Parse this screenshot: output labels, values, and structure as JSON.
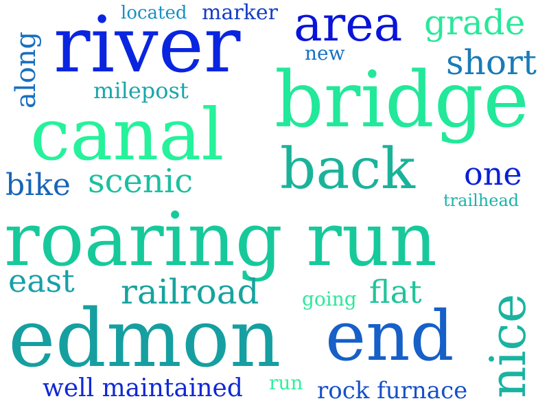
{
  "colors": {
    "blue": "#0a1fd8",
    "mid_blue": "#1a5fc4",
    "teal": "#13a3a0",
    "green": "#1fd89a",
    "bright_green": "#2ef29a"
  },
  "words": [
    {
      "text": "roaring run",
      "color": "#17c99a"
    },
    {
      "text": "edmon",
      "color": "#169fa0"
    },
    {
      "text": "river",
      "color": "#0a25e0"
    },
    {
      "text": "bridge",
      "color": "#22e89a"
    },
    {
      "text": "canal",
      "color": "#25f29a"
    },
    {
      "text": "end",
      "color": "#1660c8"
    },
    {
      "text": "back",
      "color": "#1ab39a"
    },
    {
      "text": "area",
      "color": "#0a14d8"
    },
    {
      "text": "nice",
      "color": "#1ab3a0"
    },
    {
      "text": "railroad",
      "color": "#17a39e"
    },
    {
      "text": "grade",
      "color": "#29e89a"
    },
    {
      "text": "short",
      "color": "#1a7bb8"
    },
    {
      "text": "scenic",
      "color": "#1cc0a0"
    },
    {
      "text": "bike",
      "color": "#1864b8"
    },
    {
      "text": "one",
      "color": "#0a1fd8"
    },
    {
      "text": "east",
      "color": "#17a0a8"
    },
    {
      "text": "flat",
      "color": "#20c49a"
    },
    {
      "text": "along",
      "color": "#1870c0"
    },
    {
      "text": "well maintained",
      "color": "#1028d4"
    },
    {
      "text": "rock furnace",
      "color": "#1650c8"
    },
    {
      "text": "milepost",
      "color": "#1aa6a8"
    },
    {
      "text": "marker",
      "color": "#143cc8"
    },
    {
      "text": "located",
      "color": "#1890c0"
    },
    {
      "text": "new",
      "color": "#1870c0"
    },
    {
      "text": "going",
      "color": "#2ee89a"
    },
    {
      "text": "run",
      "color": "#2ef29a"
    },
    {
      "text": "trailhead",
      "color": "#1ab3a8"
    }
  ]
}
